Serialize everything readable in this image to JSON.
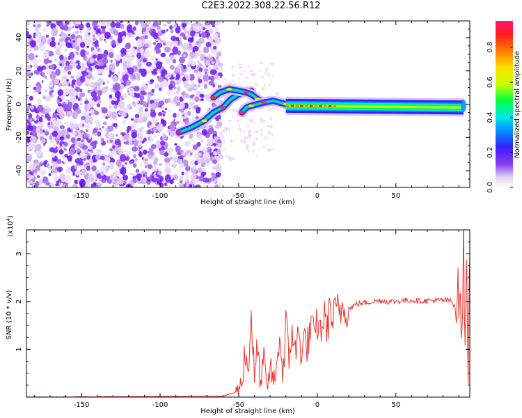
{
  "title": "C2E3.2022.308.22.56.R12",
  "chart_data": [
    {
      "type": "heatmap",
      "xlabel": "Height of straight line (km)",
      "ylabel": "Frequency (Hz)",
      "xlim": [
        -185,
        97
      ],
      "ylim": [
        -50,
        50
      ],
      "xticks": [
        -150,
        -100,
        -50,
        0,
        50
      ],
      "yticks": [
        -40,
        -20,
        0,
        20,
        40
      ],
      "colorbar": {
        "label": "Normalized spectral amplitude",
        "range": [
          0,
          0.95
        ],
        "ticks": [
          "0.0",
          "0.2",
          "0.4",
          "0.6",
          "0.8"
        ],
        "colors": [
          "#ffffff",
          "#d8c4f0",
          "#7b2ff7",
          "#3a1cff",
          "#0090ff",
          "#00e6e6",
          "#00ff40",
          "#c8ff00",
          "#ffe000",
          "#ff7a00",
          "#ff1a1a",
          "#ff1a7a"
        ]
      },
      "noise_region_x": [
        -185,
        -65
      ],
      "signal_ridges": [
        {
          "x": [
            -88,
            -80,
            -72,
            -66,
            -60,
            -55,
            -50,
            -46,
            -42
          ],
          "y": [
            -17,
            -14,
            -10,
            -5,
            -2,
            3,
            6,
            7,
            8
          ]
        },
        {
          "x": [
            -66,
            -62,
            -56,
            -50,
            -45,
            -42,
            -38,
            -34,
            -30
          ],
          "y": [
            4,
            7,
            9,
            8,
            7,
            6,
            3,
            1,
            2
          ]
        },
        {
          "x": [
            -48,
            -45,
            -42,
            -38,
            -34,
            -28,
            -20
          ],
          "y": [
            -5,
            -2,
            -1,
            0,
            1,
            2,
            0
          ]
        }
      ],
      "band": {
        "x": [
          -20,
          93
        ],
        "y_center": [
          -1,
          -2
        ],
        "half_width": 3
      }
    },
    {
      "type": "line",
      "xlabel": "Height of straight line (km)",
      "ylabel": "SNR (10 * v/v)",
      "y_multiplier_label": "(x10",
      "y_multiplier_exponent": "4",
      "y_multiplier_close": ")",
      "xlim": [
        -185,
        97
      ],
      "ylim": [
        0,
        3.5
      ],
      "xticks": [
        -150,
        -100,
        -50,
        0,
        50
      ],
      "yticks": [
        1,
        2,
        3
      ],
      "color": "#e8332a",
      "series": [
        {
          "x": [
            -185,
            -60,
            -52,
            -48,
            -46,
            -44,
            -42,
            -40,
            -38,
            -36,
            -34,
            -32,
            -30,
            -28,
            -26,
            -24,
            -22,
            -20,
            -18,
            -16,
            -14,
            -12,
            -10,
            -8,
            -6,
            -4,
            -2,
            0,
            2,
            4,
            6,
            8,
            10,
            12,
            14,
            16,
            20,
            25,
            30,
            35,
            40,
            45,
            50,
            55,
            60,
            65,
            70,
            75,
            80,
            85,
            88,
            90,
            92,
            93,
            94,
            95,
            96,
            97
          ],
          "y": [
            0.0,
            0.02,
            0.1,
            0.3,
            1.0,
            0.5,
            1.8,
            0.4,
            1.0,
            0.25,
            0.8,
            0.15,
            0.6,
            0.35,
            0.5,
            1.4,
            0.4,
            1.6,
            0.7,
            1.5,
            0.9,
            1.3,
            1.0,
            1.2,
            1.1,
            1.5,
            1.2,
            1.55,
            1.35,
            1.7,
            1.45,
            1.8,
            1.6,
            1.85,
            1.75,
            1.9,
            1.85,
            1.95,
            1.97,
            2.0,
            2.02,
            2.0,
            2.0,
            2.02,
            2.03,
            2.01,
            2.02,
            2.02,
            2.03,
            2.02,
            1.9,
            2.2,
            1.3,
            3.3,
            0.8,
            3.2,
            0.5,
            3.0
          ]
        }
      ]
    }
  ]
}
